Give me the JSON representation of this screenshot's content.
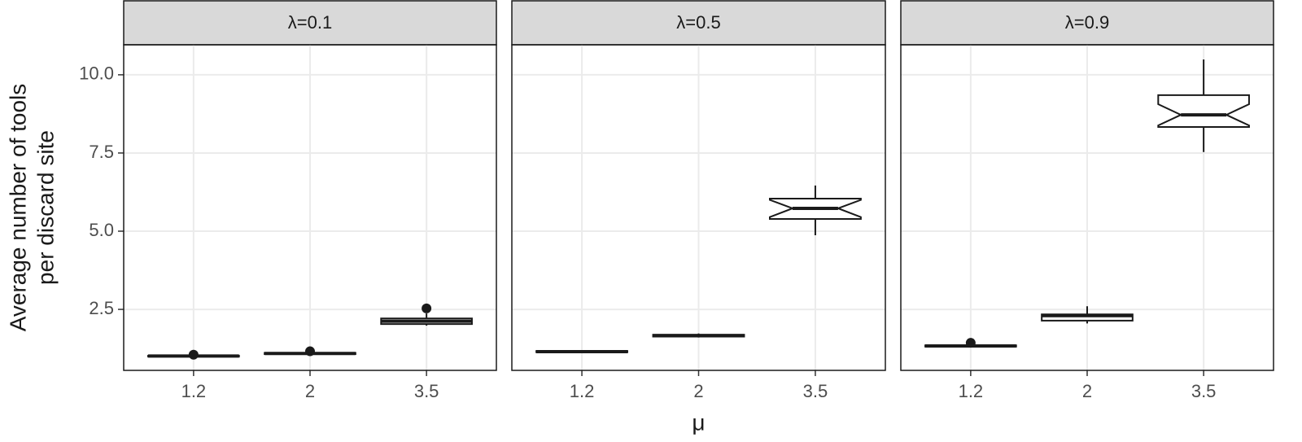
{
  "chart_data": [
    {
      "type": "boxplot",
      "title": "λ=0.1",
      "xlabel": "μ",
      "ylabel": [
        "Average number of tools",
        "per discard site"
      ],
      "categories": [
        "1.2",
        "2",
        "3.5"
      ],
      "boxes": [
        {
          "min": 0.97,
          "q1": 0.99,
          "median": 1.01,
          "q3": 1.02,
          "max": 1.03,
          "outliers": [
            1.05
          ]
        },
        {
          "min": 1.05,
          "q1": 1.07,
          "median": 1.09,
          "q3": 1.11,
          "max": 1.13,
          "outliers": [
            1.16
          ]
        },
        {
          "min": 1.98,
          "q1": 2.03,
          "median": 2.12,
          "q3": 2.21,
          "max": 2.37,
          "outliers": [
            2.53
          ]
        }
      ],
      "ylim": [
        0.55,
        10.96
      ],
      "yticks": [
        2.5,
        {
          "value": 5,
          "label": "5.0"
        },
        7.5,
        {
          "value": 10,
          "label": "10.0"
        }
      ],
      "grid": true
    },
    {
      "type": "boxplot",
      "title": "λ=0.5",
      "categories": [
        "1.2",
        "2",
        "3.5"
      ],
      "boxes": [
        {
          "min": 1.11,
          "q1": 1.13,
          "median": 1.15,
          "q3": 1.17,
          "max": 1.19
        },
        {
          "min": 1.6,
          "q1": 1.63,
          "median": 1.66,
          "q3": 1.69,
          "max": 1.73
        },
        {
          "min": 4.87,
          "q1": 5.39,
          "median": 5.73,
          "q3": 6.04,
          "max": 6.46,
          "notch": [
            5.45,
            6.0
          ]
        }
      ],
      "ylim": [
        0.55,
        10.96
      ],
      "yticks": [
        2.5,
        5,
        7.5,
        10
      ],
      "grid": true
    },
    {
      "type": "boxplot",
      "title": "λ=0.9",
      "categories": [
        "1.2",
        "2",
        "3.5"
      ],
      "boxes": [
        {
          "min": 1.29,
          "q1": 1.31,
          "median": 1.33,
          "q3": 1.35,
          "max": 1.37,
          "outliers": [
            1.43
          ]
        },
        {
          "min": 2.05,
          "q1": 2.14,
          "median": 2.3,
          "q3": 2.34,
          "max": 2.6
        },
        {
          "min": 7.53,
          "q1": 8.33,
          "median": 8.72,
          "q3": 9.35,
          "max": 10.49,
          "notch": [
            8.38,
            9.06
          ]
        }
      ],
      "ylim": [
        0.55,
        10.96
      ],
      "yticks": [
        2.5,
        5,
        7.5,
        10
      ],
      "grid": true
    }
  ]
}
